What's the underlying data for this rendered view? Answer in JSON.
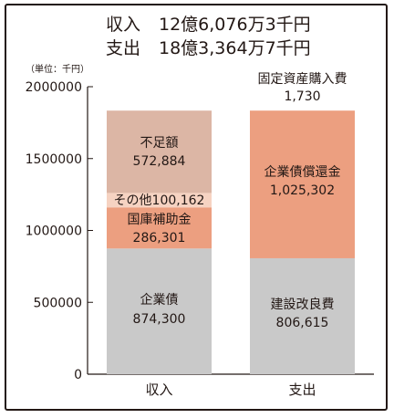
{
  "header": {
    "rows": [
      {
        "label": "収入",
        "value": "12億6,076万3千円"
      },
      {
        "label": "支出",
        "value": "18億3,364万7千円"
      }
    ]
  },
  "chart_data": {
    "type": "bar",
    "stacked": true,
    "unit_note": "（単位：千円）",
    "categories": [
      "収入",
      "支出"
    ],
    "ylim": [
      0,
      2000000
    ],
    "yticks": [
      "2000000",
      "1500000",
      "1000000",
      "500000",
      "0"
    ],
    "ytick_values": [
      2000000,
      1500000,
      1000000,
      500000,
      0
    ],
    "grid": false,
    "columns": [
      {
        "category": "収入",
        "segments": [
          {
            "name": "企業債",
            "value": 874300,
            "label": "874,300",
            "color": "#c9c9c9"
          },
          {
            "name": "国庫補助金",
            "value": 286301,
            "label": "286,301",
            "color": "#ec9f80"
          },
          {
            "name": "その他",
            "value": 100162,
            "label": "100,162",
            "color": "#f6d3c2"
          },
          {
            "name": "不足額",
            "value": 572884,
            "label": "572,884",
            "color": "#dcb6a5"
          }
        ]
      },
      {
        "category": "支出",
        "segments": [
          {
            "name": "建設改良費",
            "value": 806615,
            "label": "806,615",
            "color": "#c9c9c9"
          },
          {
            "name": "企業債償還金",
            "value": 1025302,
            "label": "1,025,302",
            "color": "#ec9f80"
          },
          {
            "name": "固定資産購入費",
            "value": 1730,
            "label": "1,730",
            "color": "#ec9f80"
          }
        ]
      }
    ]
  }
}
